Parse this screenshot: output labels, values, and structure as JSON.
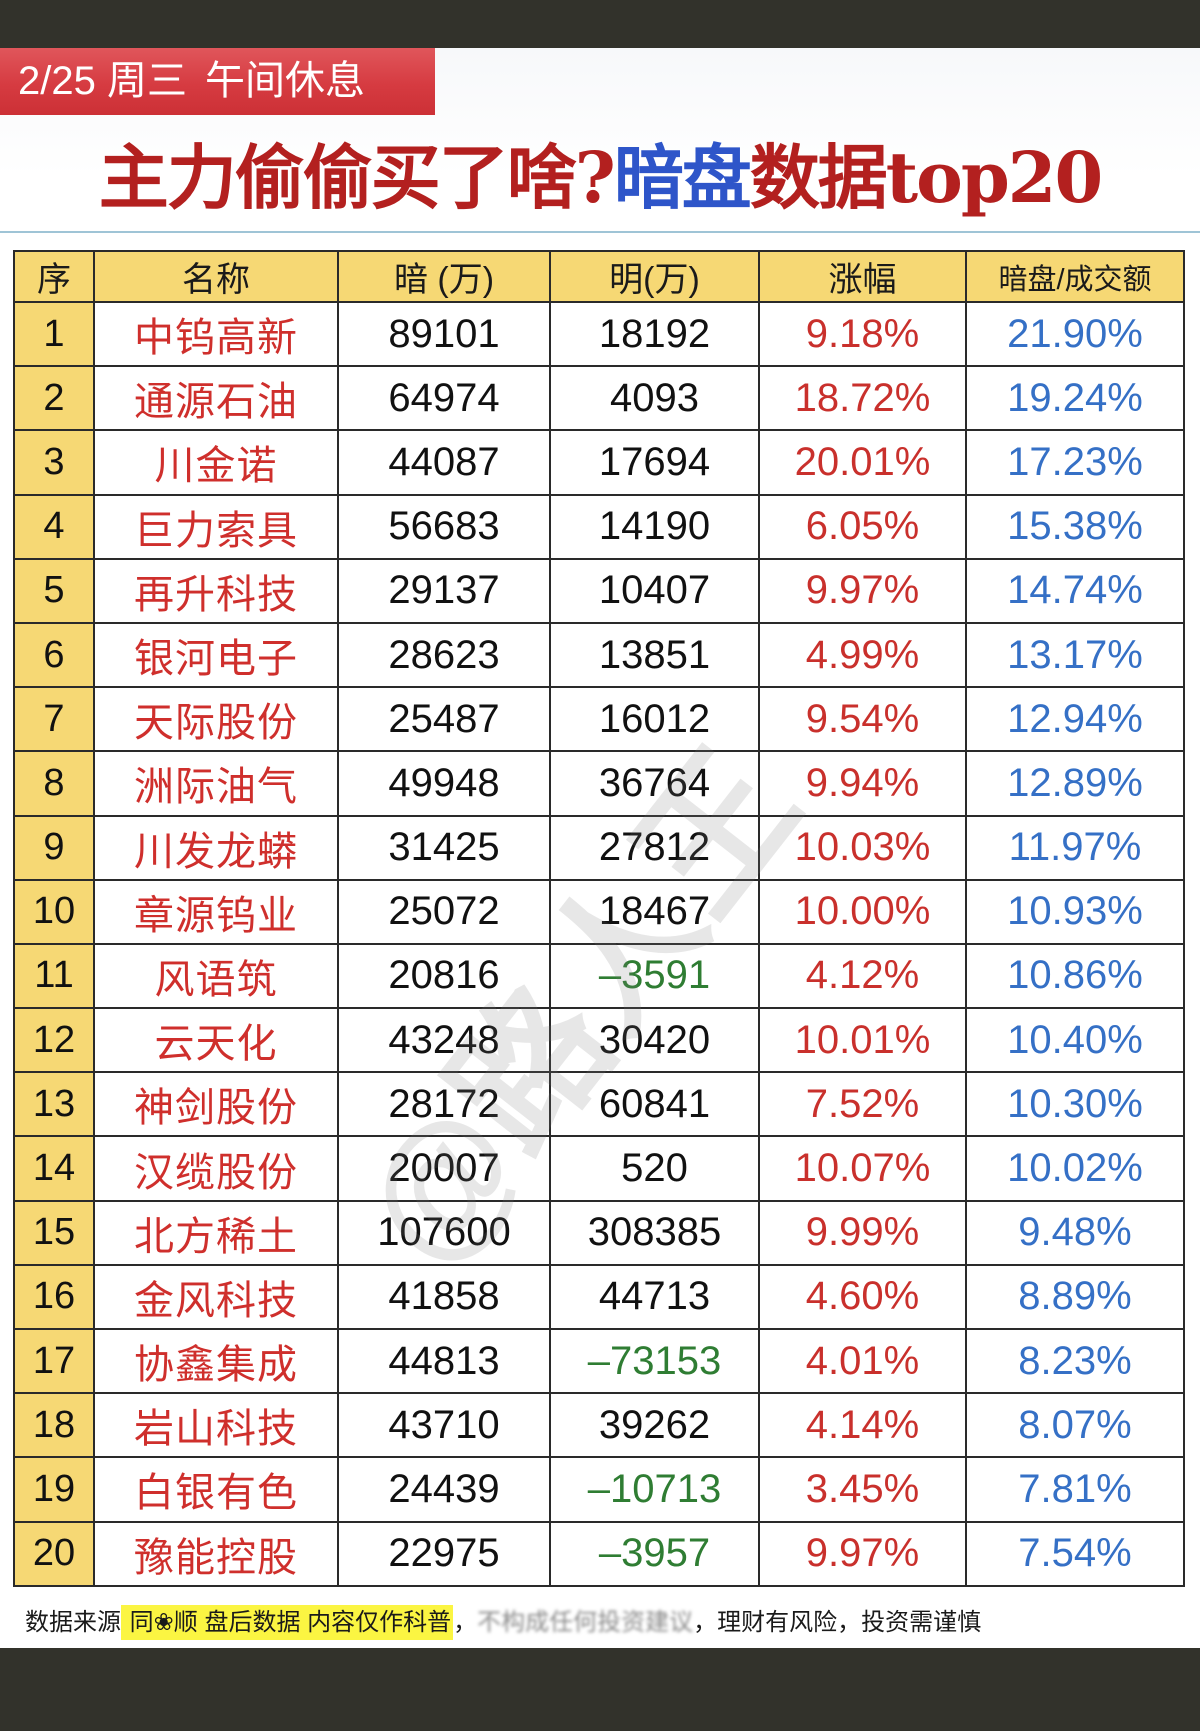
{
  "banner": {
    "date": "2/25 周三",
    "session": "午间休息"
  },
  "headline": {
    "part1": "主力偷偷买了啥?",
    "part2_blue": "暗盘",
    "part3": "数据top20"
  },
  "colors": {
    "banner_red": "#d63b41",
    "header_yellow": "#f6d874",
    "name_red": "#cf2f2c",
    "change_red": "#c9302c",
    "ratio_blue": "#3570c6",
    "negative_green": "#2f7d33",
    "title_blue": "#2e55c9",
    "title_red": "#b3201f"
  },
  "table": {
    "headers": [
      "序",
      "名称",
      "暗 (万)",
      "明(万)",
      "涨幅",
      "暗盘/成交额"
    ],
    "rows": [
      {
        "idx": "1",
        "name": "中钨高新",
        "dark": "89101",
        "light": "18192",
        "change": "9.18%",
        "ratio": "21.90%"
      },
      {
        "idx": "2",
        "name": "通源石油",
        "dark": "64974",
        "light": "4093",
        "change": "18.72%",
        "ratio": "19.24%"
      },
      {
        "idx": "3",
        "name": "川金诺",
        "dark": "44087",
        "light": "17694",
        "change": "20.01%",
        "ratio": "17.23%"
      },
      {
        "idx": "4",
        "name": "巨力索具",
        "dark": "56683",
        "light": "14190",
        "change": "6.05%",
        "ratio": "15.38%"
      },
      {
        "idx": "5",
        "name": "再升科技",
        "dark": "29137",
        "light": "10407",
        "change": "9.97%",
        "ratio": "14.74%"
      },
      {
        "idx": "6",
        "name": "银河电子",
        "dark": "28623",
        "light": "13851",
        "change": "4.99%",
        "ratio": "13.17%"
      },
      {
        "idx": "7",
        "name": "天际股份",
        "dark": "25487",
        "light": "16012",
        "change": "9.54%",
        "ratio": "12.94%"
      },
      {
        "idx": "8",
        "name": "洲际油气",
        "dark": "49948",
        "light": "36764",
        "change": "9.94%",
        "ratio": "12.89%"
      },
      {
        "idx": "9",
        "name": "川发龙蟒",
        "dark": "31425",
        "light": "27812",
        "change": "10.03%",
        "ratio": "11.97%"
      },
      {
        "idx": "10",
        "name": "章源钨业",
        "dark": "25072",
        "light": "18467",
        "change": "10.00%",
        "ratio": "10.93%"
      },
      {
        "idx": "11",
        "name": "风语筑",
        "dark": "20816",
        "light": "–3591",
        "change": "4.12%",
        "ratio": "10.86%"
      },
      {
        "idx": "12",
        "name": "云天化",
        "dark": "43248",
        "light": "30420",
        "change": "10.01%",
        "ratio": "10.40%"
      },
      {
        "idx": "13",
        "name": "神剑股份",
        "dark": "28172",
        "light": "60841",
        "change": "7.52%",
        "ratio": "10.30%"
      },
      {
        "idx": "14",
        "name": "汉缆股份",
        "dark": "20007",
        "light": "520",
        "change": "10.07%",
        "ratio": "10.02%"
      },
      {
        "idx": "15",
        "name": "北方稀土",
        "dark": "107600",
        "light": "308385",
        "change": "9.99%",
        "ratio": "9.48%"
      },
      {
        "idx": "16",
        "name": "金风科技",
        "dark": "41858",
        "light": "44713",
        "change": "4.60%",
        "ratio": "8.89%"
      },
      {
        "idx": "17",
        "name": "协鑫集成",
        "dark": "44813",
        "light": "–73153",
        "change": "4.01%",
        "ratio": "8.23%"
      },
      {
        "idx": "18",
        "name": "岩山科技",
        "dark": "43710",
        "light": "39262",
        "change": "4.14%",
        "ratio": "8.07%"
      },
      {
        "idx": "19",
        "name": "白银有色",
        "dark": "24439",
        "light": "–10713",
        "change": "3.45%",
        "ratio": "7.81%"
      },
      {
        "idx": "20",
        "name": "豫能控股",
        "dark": "22975",
        "light": "–3957",
        "change": "9.97%",
        "ratio": "7.54%"
      }
    ]
  },
  "watermark": "@路人王",
  "footer": {
    "prefix": "数据来源",
    "source": " 同❀顺  盘后数据  内容仅作科普",
    "sep1": "，",
    "blurred": "不构成任何投资建议",
    "sep2": "，",
    "risk": "理财有风险，投资需谨慎"
  }
}
